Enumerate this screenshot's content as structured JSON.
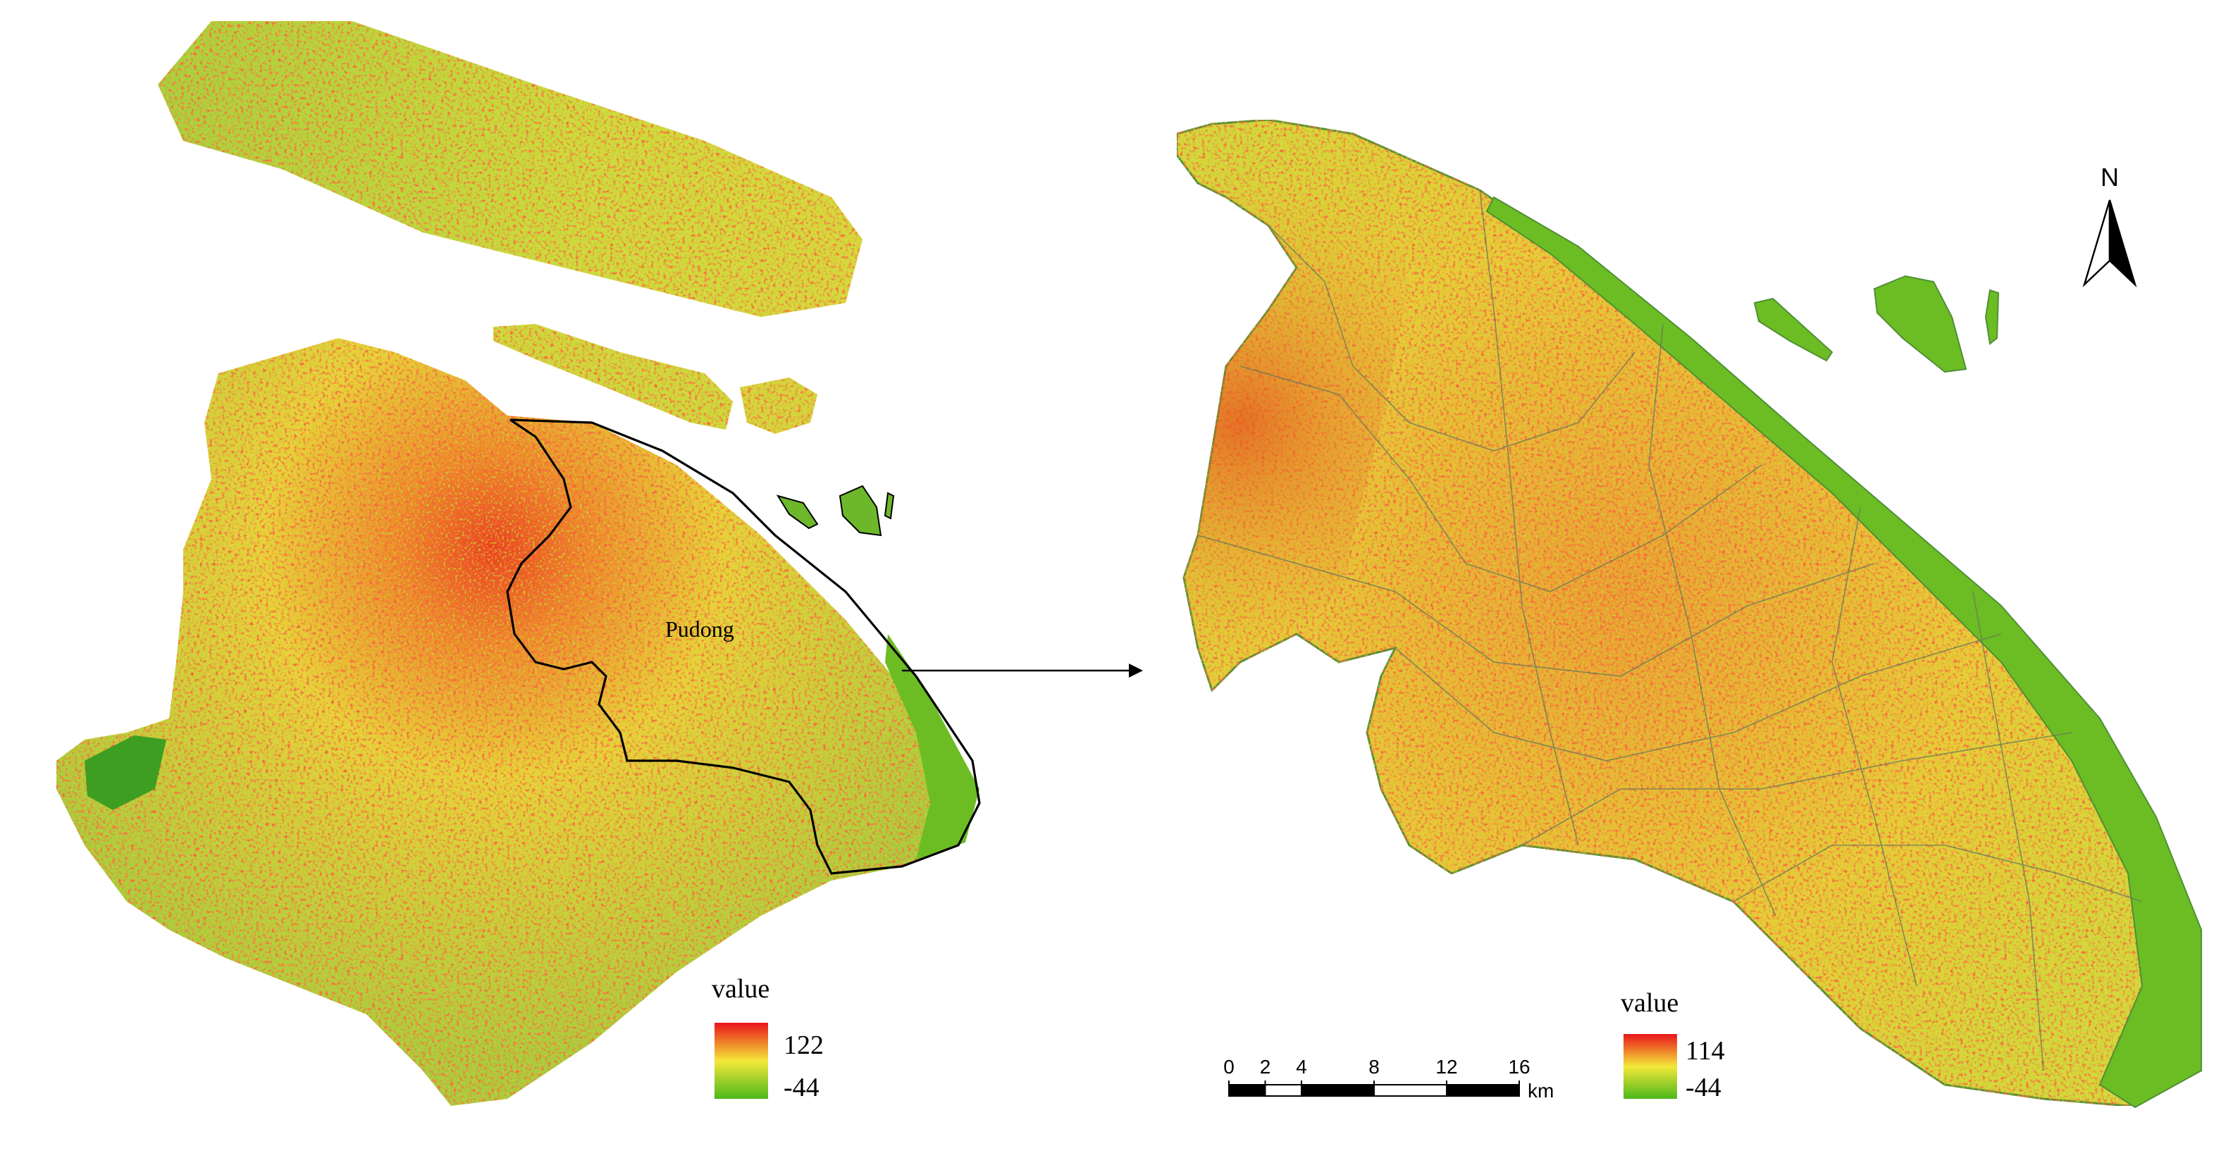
{
  "left_map": {
    "district_label": "Pudong",
    "legend": {
      "title": "value",
      "max": 122,
      "min": -44
    }
  },
  "right_map": {
    "legend": {
      "title": "value",
      "max": 114,
      "min": -44
    },
    "scale_bar": {
      "ticks": [
        0,
        2,
        4,
        8,
        12,
        16
      ],
      "unit": "km"
    },
    "north_arrow": "N"
  }
}
